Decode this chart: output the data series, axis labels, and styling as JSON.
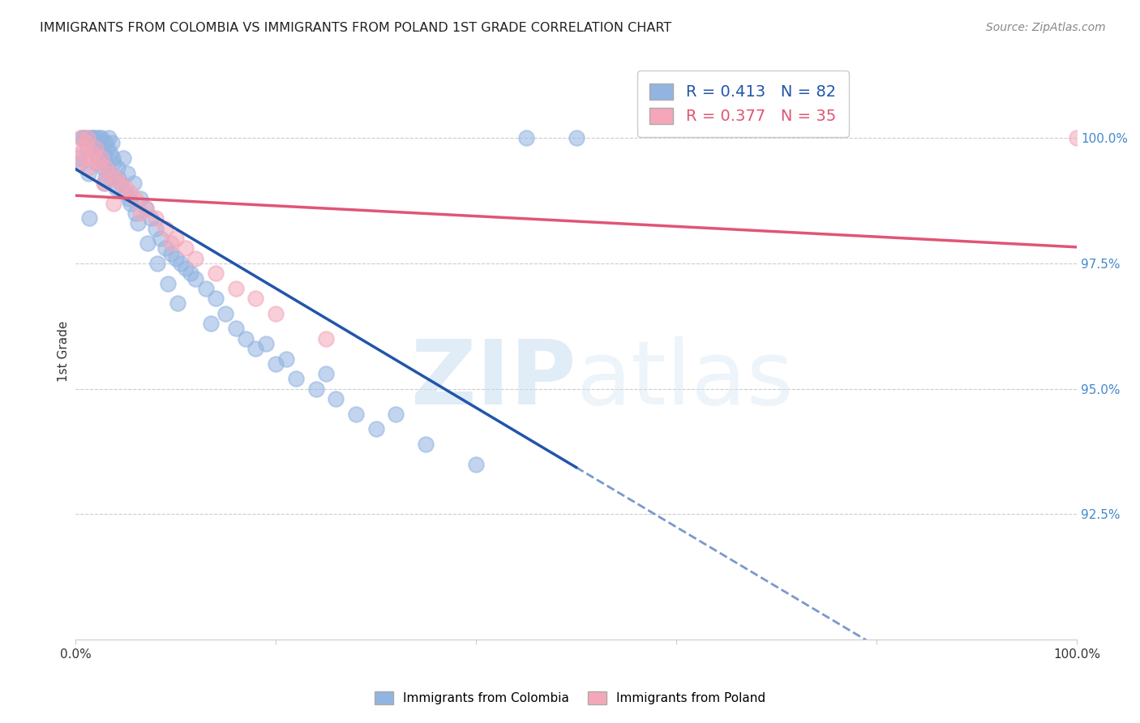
{
  "title": "IMMIGRANTS FROM COLOMBIA VS IMMIGRANTS FROM POLAND 1ST GRADE CORRELATION CHART",
  "source": "Source: ZipAtlas.com",
  "ylabel": "1st Grade",
  "xlim": [
    0,
    100
  ],
  "ylim": [
    90.0,
    101.5
  ],
  "yticks": [
    92.5,
    95.0,
    97.5,
    100.0
  ],
  "ytick_labels": [
    "92.5%",
    "95.0%",
    "97.5%",
    "100.0%"
  ],
  "colombia_color": "#92b4e1",
  "poland_color": "#f4a7b9",
  "colombia_line_color": "#2255aa",
  "poland_line_color": "#e05575",
  "R_colombia": 0.413,
  "N_colombia": 82,
  "R_poland": 0.377,
  "N_poland": 35,
  "watermark_zip": "ZIP",
  "watermark_atlas": "atlas",
  "colombia_x": [
    0.5,
    0.6,
    1.0,
    1.2,
    1.5,
    1.6,
    1.7,
    1.8,
    2.0,
    2.0,
    2.1,
    2.2,
    2.3,
    2.4,
    2.5,
    2.6,
    2.7,
    2.8,
    3.0,
    3.0,
    3.1,
    3.2,
    3.3,
    3.4,
    3.5,
    3.6,
    4.0,
    4.2,
    4.5,
    4.8,
    5.0,
    5.2,
    5.5,
    5.8,
    6.0,
    6.5,
    7.0,
    7.5,
    8.0,
    8.5,
    9.0,
    9.5,
    10.0,
    10.5,
    11.0,
    12.0,
    13.0,
    14.0,
    15.0,
    16.0,
    17.0,
    18.0,
    20.0,
    22.0,
    24.0,
    26.0,
    28.0,
    30.0,
    35.0,
    40.0,
    50.0,
    0.3,
    0.8,
    1.3,
    2.9,
    3.7,
    4.3,
    5.3,
    6.2,
    7.2,
    8.2,
    9.2,
    10.2,
    11.5,
    13.5,
    19.0,
    21.0,
    25.0,
    32.0,
    45.0,
    1.4,
    3.8
  ],
  "colombia_y": [
    99.5,
    100.0,
    100.0,
    99.8,
    100.0,
    100.0,
    99.9,
    100.0,
    99.7,
    100.0,
    99.5,
    99.8,
    100.0,
    99.6,
    99.8,
    100.0,
    99.4,
    99.7,
    99.2,
    99.9,
    99.5,
    99.8,
    100.0,
    99.3,
    99.7,
    99.9,
    99.0,
    99.4,
    99.1,
    99.6,
    98.9,
    99.3,
    98.7,
    99.1,
    98.5,
    98.8,
    98.6,
    98.4,
    98.2,
    98.0,
    97.8,
    97.7,
    97.6,
    97.5,
    97.4,
    97.2,
    97.0,
    96.8,
    96.5,
    96.2,
    96.0,
    95.8,
    95.5,
    95.2,
    95.0,
    94.8,
    94.5,
    94.2,
    93.9,
    93.5,
    100.0,
    99.6,
    100.0,
    99.3,
    99.1,
    99.6,
    99.2,
    98.8,
    98.3,
    97.9,
    97.5,
    97.1,
    96.7,
    97.3,
    96.3,
    95.9,
    95.6,
    95.3,
    94.5,
    100.0,
    98.4,
    99.5
  ],
  "poland_x": [
    0.3,
    0.5,
    0.8,
    1.0,
    1.2,
    1.5,
    1.8,
    2.0,
    2.3,
    2.6,
    3.0,
    3.5,
    4.0,
    4.5,
    5.0,
    5.5,
    6.0,
    7.0,
    8.0,
    9.0,
    10.0,
    11.0,
    12.0,
    14.0,
    16.0,
    18.0,
    20.0,
    25.0,
    0.6,
    1.3,
    2.8,
    3.8,
    6.5,
    9.5,
    100.0
  ],
  "poland_y": [
    99.5,
    100.0,
    99.8,
    99.9,
    100.0,
    99.6,
    99.7,
    99.8,
    99.5,
    99.6,
    99.4,
    99.3,
    99.2,
    99.1,
    99.0,
    98.9,
    98.8,
    98.6,
    98.4,
    98.2,
    98.0,
    97.8,
    97.6,
    97.3,
    97.0,
    96.8,
    96.5,
    96.0,
    99.7,
    99.4,
    99.1,
    98.7,
    98.5,
    97.9,
    100.0
  ]
}
